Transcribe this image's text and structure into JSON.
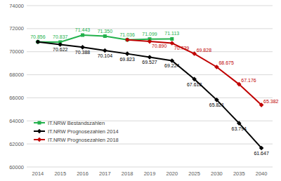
{
  "chart_data": {
    "type": "line",
    "categories": [
      "2014",
      "2015",
      "2016",
      "2017",
      "2018",
      "2019",
      "2020",
      "2025",
      "2030",
      "2035",
      "2040"
    ],
    "ylim": [
      60000,
      74000
    ],
    "yticks": [
      60000,
      62000,
      64000,
      66000,
      68000,
      70000,
      72000,
      74000
    ],
    "grid": true,
    "legend": "left",
    "data_labels": true,
    "series": [
      {
        "name": "IT.NRW Bestandszahlen",
        "color": "#22b14c",
        "marker": "square",
        "line_style": "solid",
        "values": [
          70856,
          70837,
          71443,
          71350,
          71036,
          71099,
          71113,
          null,
          null,
          null,
          null
        ],
        "value_labels": [
          "70.856",
          "70.837",
          "71.443",
          "71.350",
          "71.036",
          "71.099",
          "71.113",
          null,
          null,
          null,
          null
        ]
      },
      {
        "name": "IT.NRW Prognosezahlen 2014",
        "color": "#000000",
        "marker": "diamond",
        "line_style": "solid",
        "values": [
          70856,
          70622,
          70388,
          70104,
          69823,
          69527,
          69224,
          67618,
          65821,
          63794,
          61647
        ],
        "value_labels": [
          null,
          "70.622",
          "70.388",
          "70.104",
          "69.823",
          "69.527",
          "69.224",
          "67.618",
          "65.821",
          "63.794",
          "61.647"
        ]
      },
      {
        "name": "IT.NRW Prognosezahlen 2018",
        "color": "#c00000",
        "marker": "diamond",
        "line_style": "solid",
        "values": [
          null,
          null,
          null,
          null,
          71036,
          70890,
          70739,
          69828,
          68675,
          67176,
          65382
        ],
        "value_labels": [
          null,
          null,
          null,
          null,
          null,
          "70.890",
          "70.739",
          "69.828",
          "68.675",
          "67.176",
          "65.382"
        ]
      }
    ]
  }
}
